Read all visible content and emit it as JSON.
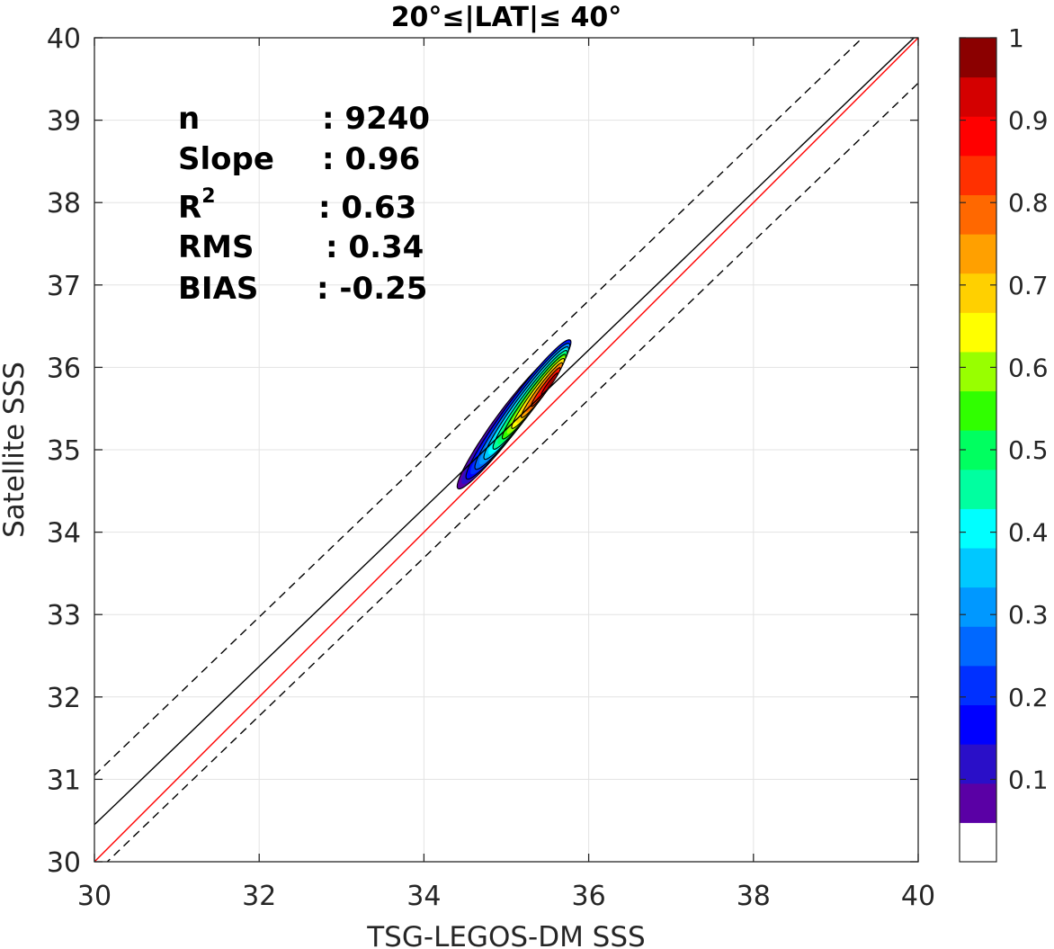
{
  "chart_data": {
    "type": "density-contour-scatter",
    "title": "20°≤|LAT|≤ 40°",
    "xlabel": "TSG-LEGOS-DM SSS",
    "ylabel": "Satellite SSS",
    "xlim": [
      30,
      40
    ],
    "ylim": [
      30,
      40
    ],
    "xticks": [
      "30",
      "32",
      "34",
      "36",
      "38",
      "40"
    ],
    "yticks": [
      "30",
      "31",
      "32",
      "33",
      "34",
      "35",
      "36",
      "37",
      "38",
      "39",
      "40"
    ],
    "grid": true,
    "stats": [
      {
        "label": "n",
        "value": ": 9240"
      },
      {
        "label": "Slope",
        "value": ": 0.96"
      },
      {
        "label": "R",
        "sup": "2",
        "value": ": 0.63"
      },
      {
        "label": "RMS",
        "value": ": 0.34"
      },
      {
        "label": "BIAS",
        "value": ": -0.25"
      }
    ],
    "lines": {
      "one_to_one": {
        "color": "#ff0000",
        "points": [
          [
            30,
            30
          ],
          [
            40,
            40
          ]
        ]
      },
      "fit": {
        "color": "#000000",
        "points": [
          [
            30,
            30.45
          ],
          [
            40,
            40.05
          ]
        ]
      },
      "fit_upper": {
        "color": "#000000",
        "dashed": true,
        "points": [
          [
            30,
            31.05
          ],
          [
            40,
            40.65
          ]
        ]
      },
      "fit_lower": {
        "color": "#000000",
        "dashed": true,
        "points": [
          [
            30,
            29.85
          ],
          [
            40,
            39.45
          ]
        ]
      }
    },
    "density": {
      "peak": [
        35.55,
        35.82
      ],
      "levels": [
        0.05,
        0.15,
        0.25,
        0.35,
        0.45,
        0.55,
        0.65,
        0.75,
        0.85,
        0.95
      ]
    },
    "colorbar": {
      "range": [
        0,
        1
      ],
      "tick_values": [
        0.1,
        0.2,
        0.3,
        0.4,
        0.5,
        0.6,
        0.7,
        0.8,
        0.9,
        1.0
      ],
      "tick_labels": [
        "0.1",
        "0.2",
        "0.3",
        "0.4",
        "0.5",
        "0.6",
        "0.7",
        "0.8",
        "0.9",
        "1"
      ],
      "colors": [
        "#ffffff",
        "#5a00a5",
        "#2a0fc8",
        "#0000ff",
        "#0030ff",
        "#0068ff",
        "#0098ff",
        "#00c8ff",
        "#00ffff",
        "#00ffa0",
        "#00ff60",
        "#30ff00",
        "#98ff00",
        "#ffff00",
        "#ffd000",
        "#ffa000",
        "#ff6800",
        "#ff3000",
        "#ff0000",
        "#d40000",
        "#8b0000"
      ]
    }
  }
}
